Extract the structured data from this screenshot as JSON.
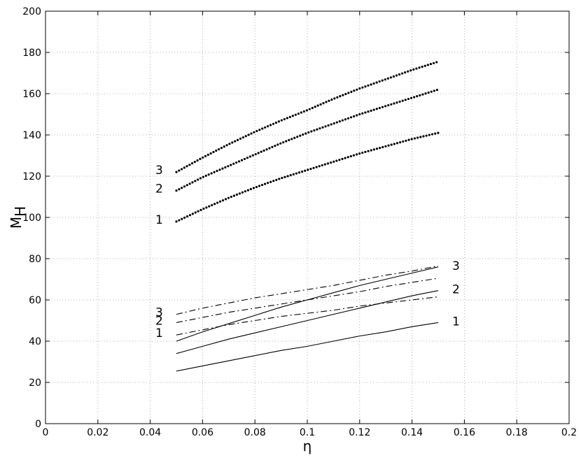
{
  "chart_data": {
    "type": "line",
    "xlabel": "η",
    "ylabel": "M",
    "ylabel_subscript": "H",
    "xlim": [
      0,
      0.2
    ],
    "ylim": [
      0,
      200
    ],
    "xticks": [
      0,
      0.02,
      0.04,
      0.06,
      0.08,
      0.1,
      0.12,
      0.14,
      0.16,
      0.18,
      0.2
    ],
    "yticks": [
      0,
      20,
      40,
      60,
      80,
      100,
      120,
      140,
      160,
      180,
      200
    ],
    "grid": true,
    "x": [
      0.05,
      0.06,
      0.07,
      0.08,
      0.09,
      0.1,
      0.11,
      0.12,
      0.13,
      0.14,
      0.15
    ],
    "series": [
      {
        "label": "3",
        "line_style": "dotted",
        "color": "#000000",
        "values": [
          122,
          129,
          135.5,
          141.5,
          147,
          152,
          157.5,
          162.5,
          167,
          171.5,
          175.5
        ]
      },
      {
        "label": "2",
        "line_style": "dotted",
        "color": "#000000",
        "values": [
          113,
          119.5,
          125,
          130.5,
          136,
          141,
          145.5,
          150,
          154,
          158,
          162
        ]
      },
      {
        "label": "1",
        "line_style": "dotted",
        "color": "#000000",
        "values": [
          98,
          104,
          109.5,
          114.5,
          119,
          123,
          127,
          131,
          134.5,
          138,
          141
        ]
      },
      {
        "label": "3",
        "line_style": "solid",
        "color": "#000000",
        "values": [
          40,
          44.5,
          48.5,
          52.5,
          56.5,
          60,
          63.5,
          67,
          70,
          73,
          76
        ]
      },
      {
        "label": "2",
        "line_style": "solid",
        "color": "#000000",
        "values": [
          34,
          37.5,
          41,
          44,
          47,
          50,
          53,
          56,
          59,
          62,
          64.5
        ]
      },
      {
        "label": "1",
        "line_style": "solid",
        "color": "#000000",
        "values": [
          25.5,
          28,
          30.5,
          33,
          35.5,
          37.5,
          40,
          42.5,
          44.5,
          47,
          49
        ]
      },
      {
        "label": "3",
        "line_style": "dash-dot",
        "color": "#000000",
        "values": [
          53,
          56,
          58.5,
          61,
          63,
          65,
          67,
          69.5,
          72,
          74,
          76.5
        ]
      },
      {
        "label": "2",
        "line_style": "dash-dot",
        "color": "#000000",
        "values": [
          49,
          51.5,
          54,
          56,
          58,
          60,
          62,
          64,
          66.5,
          68.5,
          70.5
        ]
      },
      {
        "label": "1",
        "line_style": "dash-dot",
        "color": "#000000",
        "values": [
          43,
          45.5,
          48,
          50,
          52,
          53.5,
          55,
          57,
          58.5,
          60,
          61.5
        ]
      }
    ]
  }
}
